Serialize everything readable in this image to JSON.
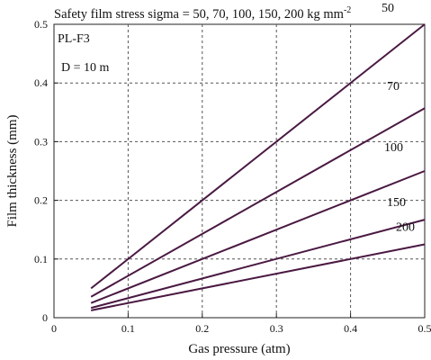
{
  "chart_data": {
    "type": "line",
    "title": "Safety film stress sigma = 50, 70, 100, 150, 200 kg mm",
    "title_superscript": "-2",
    "xlabel": "Gas pressure (atm)",
    "ylabel": "Film thickness (mm)",
    "xlim": [
      0,
      0.5
    ],
    "ylim": [
      0,
      0.5
    ],
    "x_ticks": [
      "0",
      "0.1",
      "0.2",
      "0.3",
      "0.4",
      "0.5"
    ],
    "y_ticks": [
      "0",
      "0.1",
      "0.2",
      "0.3",
      "0.4",
      "0.5"
    ],
    "x_tick_values": [
      0,
      0.1,
      0.2,
      0.3,
      0.4,
      0.5
    ],
    "y_tick_values": [
      0,
      0.1,
      0.2,
      0.3,
      0.4,
      0.5
    ],
    "grid": "dashed",
    "annotations": [
      "PL-F3",
      "D = 10 m"
    ],
    "line_color": "#4a1942",
    "series": [
      {
        "name": "50",
        "x": [
          0.05,
          0.5
        ],
        "y": [
          0.05,
          0.5
        ]
      },
      {
        "name": "70",
        "x": [
          0.05,
          0.5
        ],
        "y": [
          0.0357,
          0.357
        ]
      },
      {
        "name": "100",
        "x": [
          0.05,
          0.5
        ],
        "y": [
          0.025,
          0.25
        ]
      },
      {
        "name": "150",
        "x": [
          0.05,
          0.5
        ],
        "y": [
          0.0167,
          0.167
        ]
      },
      {
        "name": "200",
        "x": [
          0.05,
          0.5
        ],
        "y": [
          0.0125,
          0.125
        ]
      }
    ]
  }
}
